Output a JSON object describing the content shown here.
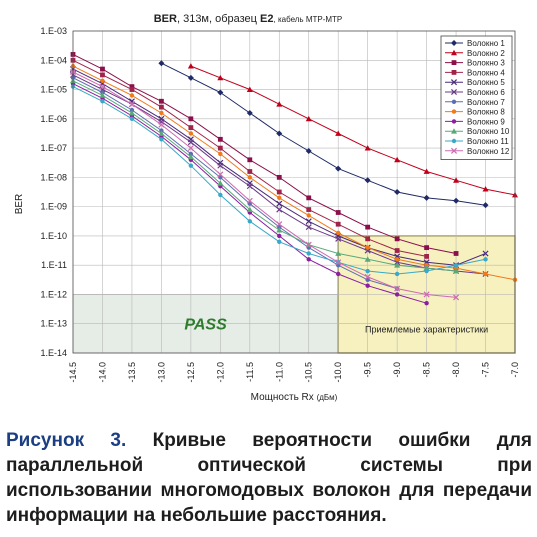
{
  "chart_data": {
    "type": "line",
    "title_parts": {
      "ber": "BER",
      "rest": ", 313м, образец",
      "sample": "E2",
      "cable": ", кабель MTP-MTP"
    },
    "xlabel": "Мощность Rx",
    "xlabel_unit": "(дБм)",
    "ylabel": "BER",
    "x_ticks": [
      "-14.5",
      "-14.0",
      "-13.5",
      "-13.0",
      "-12.5",
      "-12.0",
      "-11.5",
      "-11.0",
      "-10.5",
      "-10.0",
      "-9.5",
      "-9.0",
      "-8.5",
      "-8.0",
      "-7.5",
      "-7.0"
    ],
    "y_ticks": [
      "1.E-03",
      "1.E-04",
      "1.E-05",
      "1.E-06",
      "1.E-07",
      "1.E-08",
      "1.E-09",
      "1.E-10",
      "1.E-11",
      "1.E-12",
      "1.E-13",
      "1.E-14"
    ],
    "xlim": [
      -14.5,
      -7.0
    ],
    "ylim_exp": [
      -14,
      -3
    ],
    "y_scale": "log",
    "grid": true,
    "legend_position": "top-right",
    "pass_region": {
      "label": "PASS",
      "x": [
        -14.5,
        -10.0
      ],
      "ber_max": 1e-12
    },
    "acceptable_region": {
      "label": "Приемлемые характеристики",
      "x": [
        -10.0,
        -7.0
      ],
      "ber_max": 1e-10
    },
    "colors": {
      "pass_fill": "#e6ece6",
      "pass_text": "#2e7d2e",
      "acceptable_fill": "#f6f1bf",
      "acceptable_border": "#7a6a00",
      "grid": "#b8b8b8"
    },
    "series": [
      {
        "name": "Волокно 1",
        "color": "#1f2a66",
        "marker": "diamond",
        "x": [
          -13.0,
          -12.5,
          -12.0,
          -11.5,
          -11.0,
          -10.5,
          -10.0,
          -9.5,
          -9.0,
          -8.5,
          -8.0,
          -7.5
        ],
        "y": [
          -4.1,
          -4.6,
          -5.1,
          -5.8,
          -6.5,
          -7.1,
          -7.7,
          -8.1,
          -8.5,
          -8.7,
          -8.8,
          -8.95
        ]
      },
      {
        "name": "Волокно 2",
        "color": "#c0001a",
        "marker": "triangle",
        "x": [
          -12.5,
          -12.0,
          -11.5,
          -11.0,
          -10.5,
          -10.0,
          -9.5,
          -9.0,
          -8.5,
          -8.0,
          -7.5,
          -7.0
        ],
        "y": [
          -4.2,
          -4.6,
          -5.0,
          -5.5,
          -6.0,
          -6.5,
          -7.0,
          -7.4,
          -7.8,
          -8.1,
          -8.4,
          -8.6
        ]
      },
      {
        "name": "Волокно 3",
        "color": "#8a0f4a",
        "marker": "square",
        "x": [
          -14.5,
          -14.0,
          -13.5,
          -13.0,
          -12.5,
          -12.0,
          -11.5,
          -11.0,
          -10.5,
          -10.0,
          -9.5,
          -9.0,
          -8.5,
          -8.0
        ],
        "y": [
          -3.8,
          -4.3,
          -4.9,
          -5.4,
          -6.0,
          -6.7,
          -7.4,
          -8.0,
          -8.7,
          -9.2,
          -9.7,
          -10.1,
          -10.4,
          -10.6
        ]
      },
      {
        "name": "Волокно 4",
        "color": "#a0244a",
        "marker": "square",
        "x": [
          -14.5,
          -14.0,
          -13.5,
          -13.0,
          -12.5,
          -12.0,
          -11.5,
          -11.0,
          -10.5,
          -10.0,
          -9.5,
          -9.0,
          -8.5
        ],
        "y": [
          -4.0,
          -4.5,
          -5.0,
          -5.6,
          -6.3,
          -7.0,
          -7.8,
          -8.5,
          -9.1,
          -9.6,
          -10.1,
          -10.5,
          -10.7
        ]
      },
      {
        "name": "Волокно 5",
        "color": "#4a2a7a",
        "marker": "cross",
        "x": [
          -14.5,
          -14.0,
          -13.5,
          -13.0,
          -12.5,
          -12.0,
          -11.5,
          -11.0,
          -10.5,
          -10.0,
          -9.5,
          -9.0,
          -8.5,
          -8.0,
          -7.5
        ],
        "y": [
          -4.3,
          -4.8,
          -5.4,
          -6.0,
          -6.7,
          -7.5,
          -8.2,
          -8.9,
          -9.5,
          -10.0,
          -10.4,
          -10.7,
          -10.9,
          -11.0,
          -10.6
        ]
      },
      {
        "name": "Волокно 6",
        "color": "#6a3a8a",
        "marker": "cross",
        "x": [
          -14.5,
          -14.0,
          -13.5,
          -13.0,
          -12.5,
          -12.0,
          -11.5,
          -11.0,
          -10.5,
          -10.0,
          -9.5,
          -9.0,
          -8.5,
          -8.0,
          -7.5
        ],
        "y": [
          -4.5,
          -5.0,
          -5.5,
          -6.1,
          -6.8,
          -7.6,
          -8.3,
          -9.1,
          -9.7,
          -10.1,
          -10.5,
          -10.9,
          -11.1,
          -11.2,
          -11.3
        ]
      },
      {
        "name": "Волокно 7",
        "color": "#5a6fb0",
        "marker": "circle",
        "x": [
          -14.5,
          -14.0,
          -13.5,
          -13.0,
          -12.5,
          -12.0,
          -11.5,
          -11.0,
          -10.5,
          -10.0,
          -9.5,
          -9.0
        ],
        "y": [
          -4.6,
          -5.1,
          -5.7,
          -6.4,
          -7.2,
          -8.0,
          -8.9,
          -9.7,
          -10.4,
          -11.0,
          -11.5,
          -11.8
        ]
      },
      {
        "name": "Волокно 8",
        "color": "#f07a1a",
        "marker": "circle",
        "x": [
          -14.5,
          -14.0,
          -13.5,
          -13.0,
          -12.5,
          -12.0,
          -11.5,
          -11.0,
          -10.5,
          -10.0,
          -9.5,
          -9.0,
          -8.5,
          -8.0,
          -7.5,
          -7.0
        ],
        "y": [
          -4.2,
          -4.7,
          -5.2,
          -5.8,
          -6.5,
          -7.2,
          -8.0,
          -8.7,
          -9.3,
          -9.9,
          -10.4,
          -10.8,
          -11.0,
          -11.1,
          -11.3,
          -11.5
        ]
      },
      {
        "name": "Волокно 9",
        "color": "#8a1fa0",
        "marker": "circle",
        "x": [
          -14.5,
          -14.0,
          -13.5,
          -13.0,
          -12.5,
          -12.0,
          -11.5,
          -11.0,
          -10.5,
          -10.0,
          -9.5,
          -9.0,
          -8.5
        ],
        "y": [
          -4.8,
          -5.3,
          -5.9,
          -6.6,
          -7.4,
          -8.3,
          -9.2,
          -10.0,
          -10.8,
          -11.3,
          -11.7,
          -12.0,
          -12.3
        ]
      },
      {
        "name": "Волокно 10",
        "color": "#5aa878",
        "marker": "triangle",
        "x": [
          -14.5,
          -14.0,
          -13.5,
          -13.0,
          -12.5,
          -12.0,
          -11.5,
          -11.0,
          -10.5,
          -10.0,
          -9.5,
          -9.0,
          -8.5,
          -8.0
        ],
        "y": [
          -4.7,
          -5.2,
          -5.8,
          -6.5,
          -7.3,
          -8.2,
          -9.1,
          -9.8,
          -10.3,
          -10.6,
          -10.8,
          -11.0,
          -11.1,
          -11.2
        ]
      },
      {
        "name": "Волокно 11",
        "color": "#3aa8c8",
        "marker": "circle",
        "x": [
          -14.5,
          -14.0,
          -13.5,
          -13.0,
          -12.5,
          -12.0,
          -11.5,
          -11.0,
          -10.5,
          -10.0,
          -9.5,
          -9.0,
          -8.5,
          -8.0,
          -7.5
        ],
        "y": [
          -4.9,
          -5.4,
          -6.0,
          -6.7,
          -7.6,
          -8.6,
          -9.5,
          -10.2,
          -10.6,
          -10.9,
          -11.2,
          -11.3,
          -11.2,
          -11.0,
          -10.8
        ]
      },
      {
        "name": "Волокно 12",
        "color": "#d06ab0",
        "marker": "cross",
        "x": [
          -14.5,
          -14.0,
          -13.5,
          -13.0,
          -12.5,
          -12.0,
          -11.5,
          -11.0,
          -10.5,
          -10.0,
          -9.5,
          -9.0,
          -8.5,
          -8.0
        ],
        "y": [
          -4.4,
          -4.9,
          -5.5,
          -6.2,
          -7.0,
          -7.9,
          -8.8,
          -9.6,
          -10.3,
          -10.9,
          -11.4,
          -11.8,
          -12.0,
          -12.1
        ]
      }
    ]
  },
  "caption": {
    "label": "Рисунок 3.",
    "text": "Кривые вероятности ошибки для параллельной оптической системы при использовании многомодовых волокон для передачи информации на небольшие расстояния."
  }
}
